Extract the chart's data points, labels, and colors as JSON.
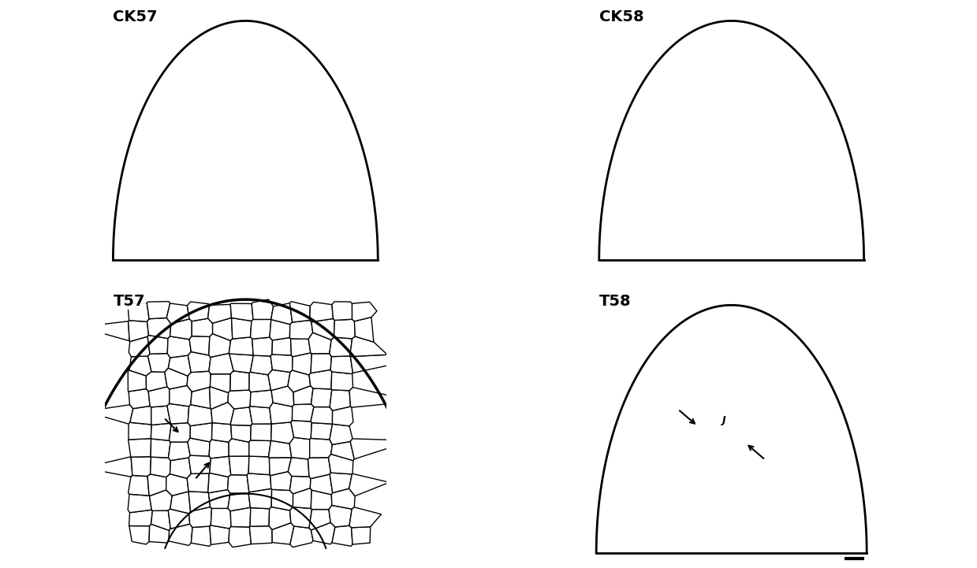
{
  "labels": [
    "CK57",
    "CK58",
    "T57",
    "T58"
  ],
  "label_fontsize": 14,
  "label_fontweight": "bold",
  "background_color": "#ffffff",
  "figsize": [
    12.39,
    7.21
  ],
  "dpi": 100
}
